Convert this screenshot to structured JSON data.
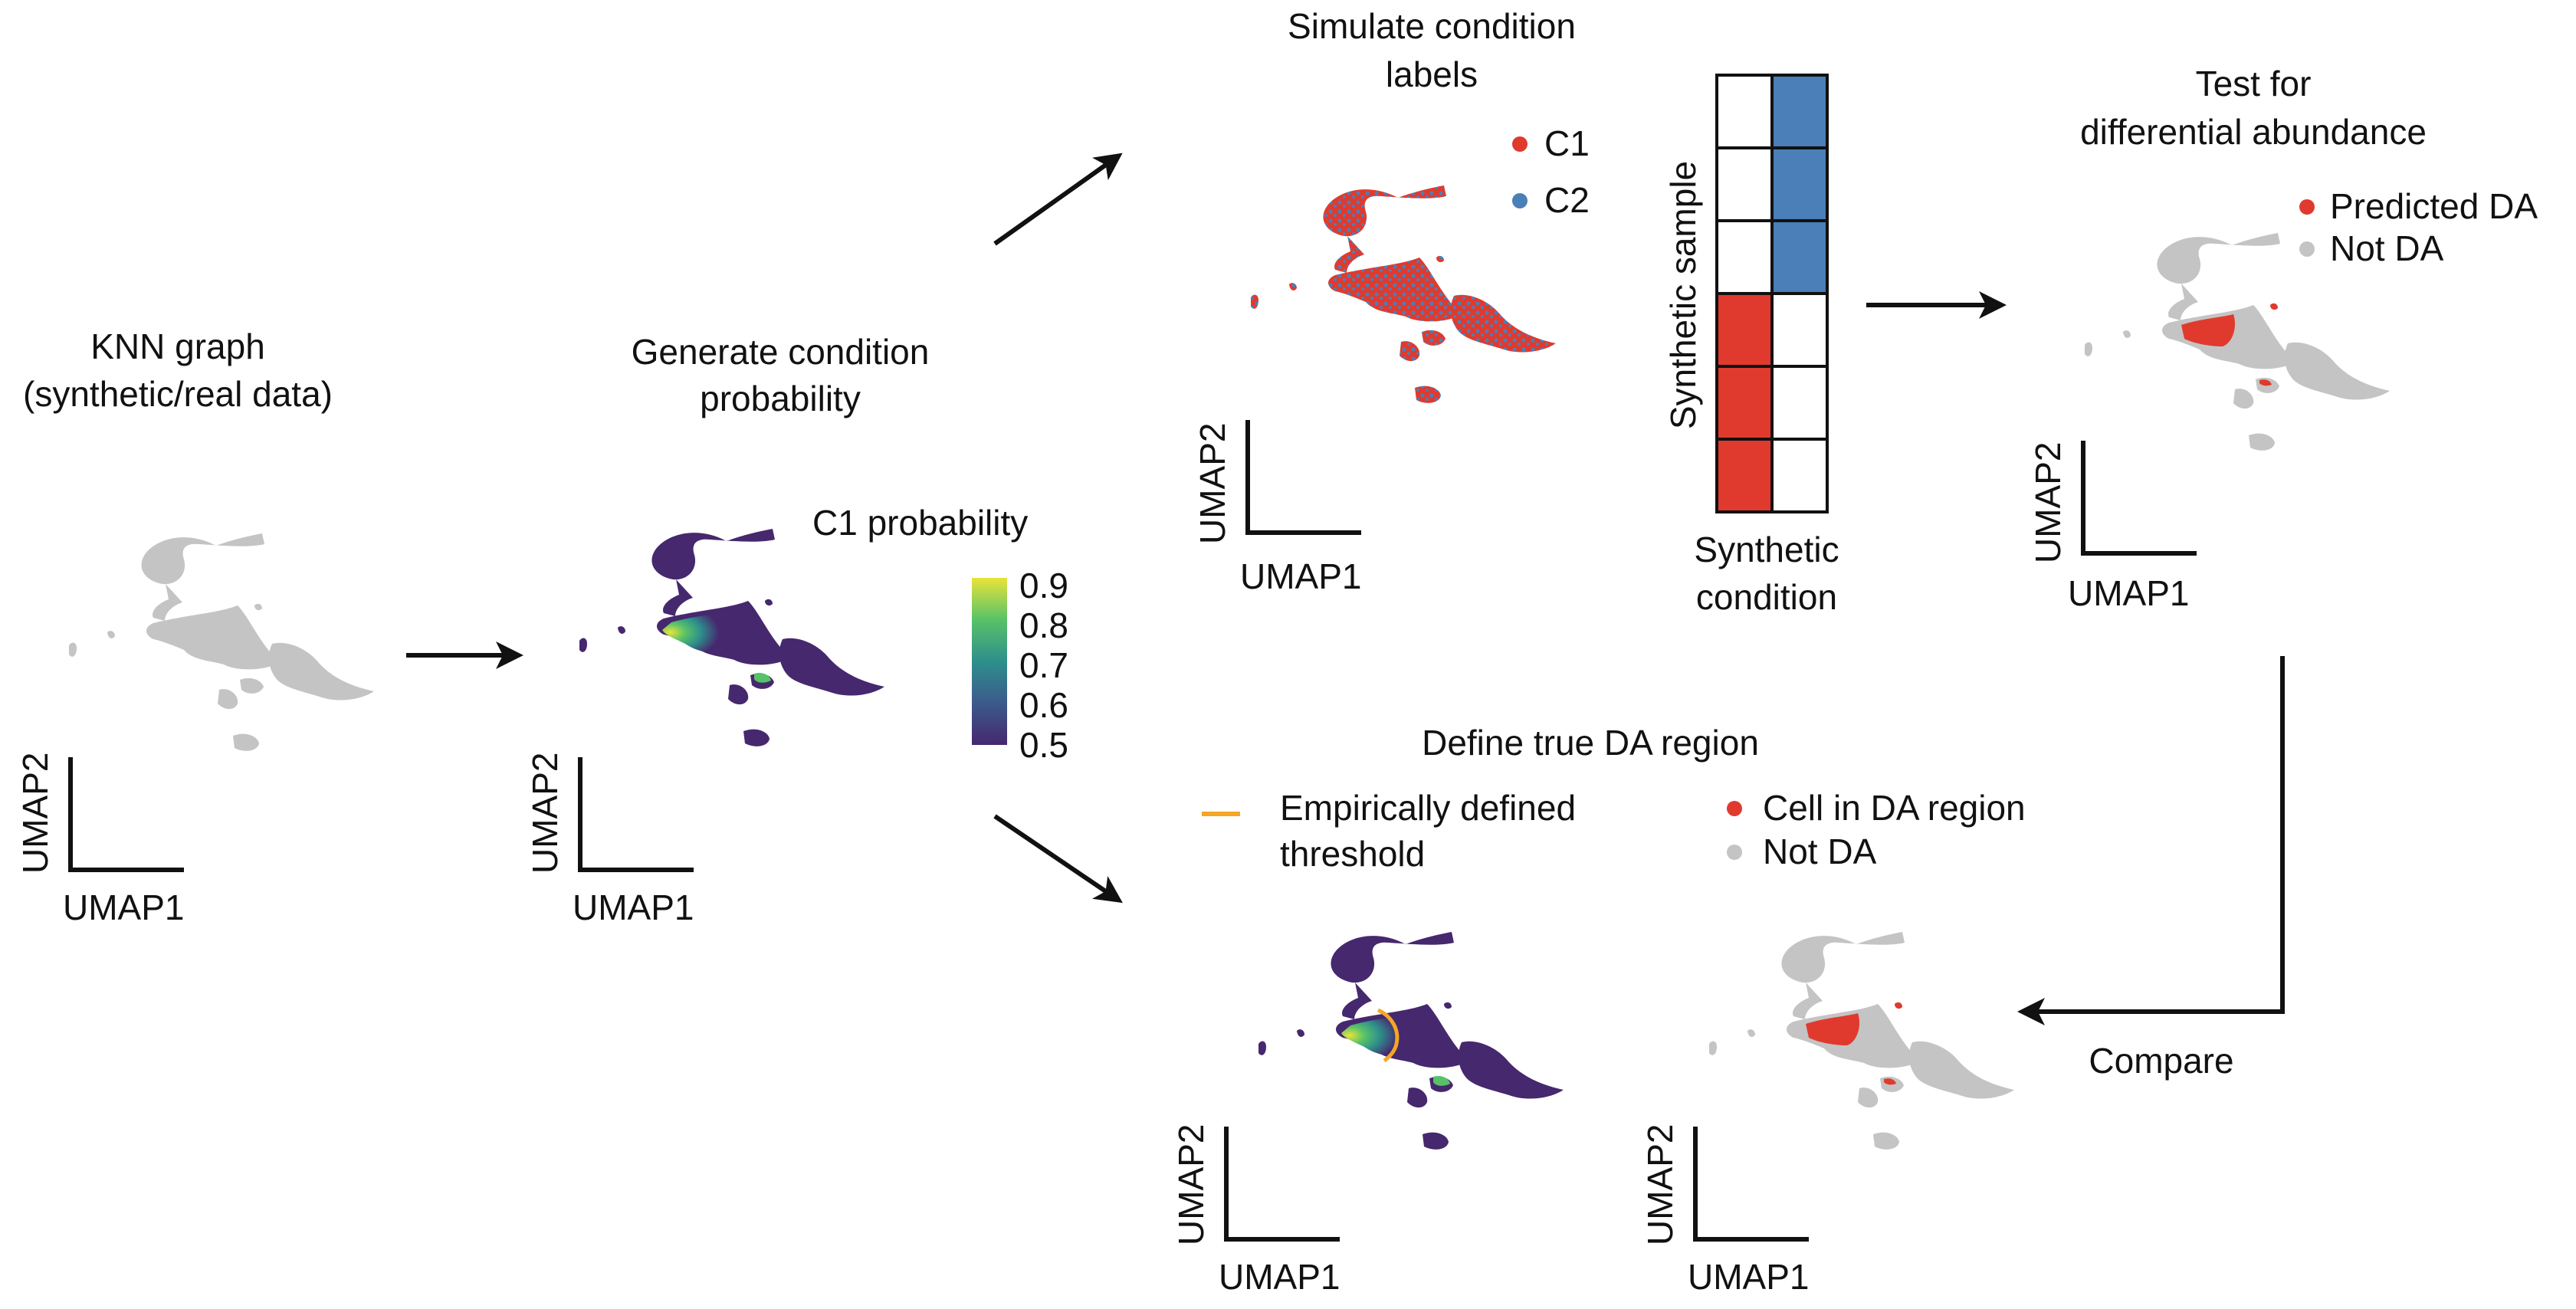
{
  "colors": {
    "grey": "#c4c4c4",
    "red": "#e03a2e",
    "blue": "#4a7fb8",
    "purple": "#46286e",
    "teal": "#2e8f8c",
    "green": "#58c268",
    "yellow": "#e8e43a",
    "threshold": "#f5a623",
    "arrow": "#111111"
  },
  "panels": {
    "knn": {
      "title_line1": "KNN graph",
      "title_line2": "(synthetic/real data)",
      "xaxis": "UMAP1",
      "yaxis": "UMAP2"
    },
    "probability": {
      "title_line1": "Generate condition",
      "title_line2": "probability",
      "colorbar_title": "C1 probability",
      "colorbar_ticks": [
        "0.9",
        "0.8",
        "0.7",
        "0.6",
        "0.5"
      ],
      "xaxis": "UMAP1",
      "yaxis": "UMAP2"
    },
    "simulate": {
      "title_line1": "Simulate condition",
      "title_line2": "labels",
      "legend": [
        {
          "label": "C1",
          "color": "#e03a2e"
        },
        {
          "label": "C2",
          "color": "#4a7fb8"
        }
      ],
      "xaxis": "UMAP1",
      "yaxis": "UMAP2"
    },
    "design_matrix": {
      "y_label": "Synthetic sample",
      "x_label_line1": "Synthetic",
      "x_label_line2": "condition",
      "rows": [
        [
          "white",
          "blue"
        ],
        [
          "white",
          "blue"
        ],
        [
          "white",
          "blue"
        ],
        [
          "red",
          "white"
        ],
        [
          "red",
          "white"
        ],
        [
          "red",
          "white"
        ]
      ]
    },
    "test": {
      "title_line1": "Test for",
      "title_line2": "differential abundance",
      "legend": [
        {
          "label": "Predicted DA",
          "color": "#e03a2e"
        },
        {
          "label": "Not DA",
          "color": "#c4c4c4"
        }
      ],
      "xaxis": "UMAP1",
      "yaxis": "UMAP2"
    },
    "true_da": {
      "title": "Define true DA region",
      "threshold_label_line1": "Empirically defined",
      "threshold_label_line2": "threshold",
      "legend": [
        {
          "label": "Cell in DA region",
          "color": "#e03a2e"
        },
        {
          "label": "Not DA",
          "color": "#c4c4c4"
        }
      ],
      "xaxis": "UMAP1",
      "yaxis": "UMAP2"
    }
  },
  "compare_label": "Compare"
}
